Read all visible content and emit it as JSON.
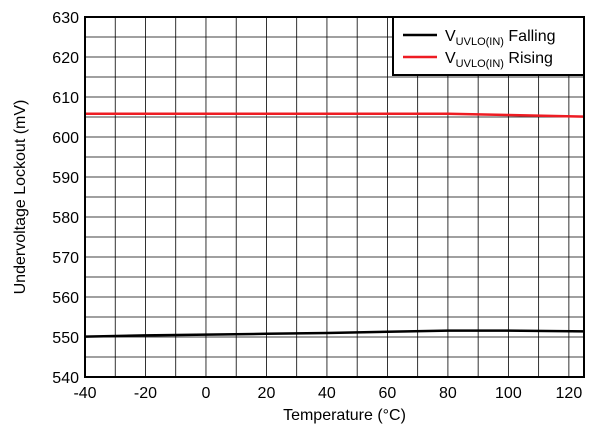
{
  "chart_data": {
    "type": "line",
    "title": "",
    "xlabel": "Temperature (°C)",
    "ylabel": "Undervoltage Lockout (mV)",
    "xlim": [
      -40,
      125
    ],
    "ylim": [
      540,
      630
    ],
    "x_major_ticks": [
      -40,
      -20,
      0,
      20,
      40,
      60,
      80,
      100,
      120
    ],
    "x_minor_step": 10,
    "y_major_ticks": [
      540,
      550,
      560,
      570,
      580,
      590,
      600,
      610,
      620,
      630
    ],
    "y_minor_step": 5,
    "grid": true,
    "legend_position": "top-right",
    "series": [
      {
        "name": "Falling",
        "name_main": "V",
        "name_sub": "UVLO(IN)",
        "name_suffix": " Falling",
        "color": "#000000",
        "x": [
          -40,
          -20,
          0,
          20,
          40,
          60,
          80,
          100,
          125
        ],
        "values": [
          550.1,
          550.4,
          550.6,
          550.8,
          551.0,
          551.3,
          551.6,
          551.6,
          551.4
        ]
      },
      {
        "name": "Rising",
        "name_main": "V",
        "name_sub": "UVLO(IN)",
        "name_suffix": " Rising",
        "color": "#ee1c23",
        "x": [
          -40,
          -20,
          0,
          20,
          40,
          60,
          80,
          100,
          125
        ],
        "values": [
          605.8,
          605.8,
          605.8,
          605.8,
          605.8,
          605.8,
          605.8,
          605.5,
          605.1
        ]
      }
    ]
  }
}
